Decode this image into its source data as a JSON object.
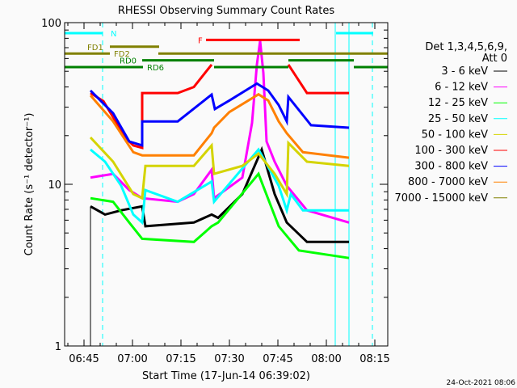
{
  "chart_data": {
    "type": "line",
    "title": "RHESSI Observing Summary Count Rates",
    "xlabel": "Start Time (17-Jun-14 06:39:02)",
    "ylabel": "Count Rate (s⁻¹ detector⁻¹)",
    "yscale": "log",
    "ylim": [
      1,
      100
    ],
    "xlim": [
      "06:39:00",
      "08:19:00"
    ],
    "x_ticks": [
      "06:45",
      "07:00",
      "07:15",
      "07:30",
      "07:45",
      "08:00",
      "08:15"
    ],
    "y_ticks": [
      "1",
      "10",
      "100"
    ],
    "grid": false,
    "legend_placement": "right",
    "legend_header": [
      "Det 1,3,4,5,6,9,",
      "Att 0"
    ],
    "footer": "24-Oct-2021 08:06",
    "series": [
      {
        "name": "3 - 6 keV",
        "color": "#000000",
        "points": [
          [
            "06:47:00",
            7.3
          ],
          [
            "06:51:30",
            6.5
          ],
          [
            "06:56:30",
            6.9
          ],
          [
            "07:03:00",
            7.3
          ],
          [
            "07:04:00",
            5.5
          ],
          [
            "07:19:00",
            5.8
          ],
          [
            "07:24:30",
            6.5
          ],
          [
            "07:26:30",
            6.2
          ],
          [
            "07:34:00",
            8.7
          ],
          [
            "07:40:00",
            16.4
          ],
          [
            "07:44:00",
            8.7
          ],
          [
            "07:47:45",
            5.8
          ],
          [
            "07:54:00",
            4.4
          ],
          [
            "08:07:00",
            4.4
          ]
        ]
      },
      {
        "name": "6 - 12 keV",
        "color": "#ff00ff",
        "points": [
          [
            "06:47:00",
            11
          ],
          [
            "06:54:00",
            11.6
          ],
          [
            "06:59:00",
            9.2
          ],
          [
            "07:03:00",
            8.2
          ],
          [
            "07:14:00",
            7.8
          ],
          [
            "07:19:00",
            8.7
          ],
          [
            "07:24:30",
            12.3
          ],
          [
            "07:25:15",
            8.2
          ],
          [
            "07:34:00",
            11
          ],
          [
            "07:37:00",
            24
          ],
          [
            "07:38:30",
            55
          ],
          [
            "07:39:30",
            77
          ],
          [
            "07:40:30",
            49
          ],
          [
            "07:41:30",
            18.4
          ],
          [
            "07:44:00",
            13.8
          ],
          [
            "07:47:45",
            9.8
          ],
          [
            "07:54:00",
            6.9
          ],
          [
            "08:07:00",
            5.8
          ]
        ]
      },
      {
        "name": "12 - 25 keV",
        "color": "#00ff00",
        "points": [
          [
            "06:47:00",
            8.2
          ],
          [
            "06:54:00",
            7.8
          ],
          [
            "06:59:00",
            5.8
          ],
          [
            "07:03:00",
            4.6
          ],
          [
            "07:19:00",
            4.4
          ],
          [
            "07:24:30",
            5.5
          ],
          [
            "07:26:30",
            5.8
          ],
          [
            "07:39:00",
            11.6
          ],
          [
            "07:45:15",
            5.5
          ],
          [
            "07:51:30",
            3.9
          ],
          [
            "08:07:00",
            3.5
          ]
        ]
      },
      {
        "name": "25 - 50 keV",
        "color": "#00ffff",
        "points": [
          [
            "06:47:00",
            16.4
          ],
          [
            "06:51:30",
            13.8
          ],
          [
            "06:56:30",
            9.8
          ],
          [
            "07:00:15",
            6.5
          ],
          [
            "07:03:00",
            5.8
          ],
          [
            "07:04:00",
            9.2
          ],
          [
            "07:14:00",
            7.8
          ],
          [
            "07:24:30",
            10.4
          ],
          [
            "07:25:15",
            7.8
          ],
          [
            "07:39:00",
            16.4
          ],
          [
            "07:45:15",
            9.8
          ],
          [
            "07:47:45",
            6.9
          ],
          [
            "07:49:00",
            8.7
          ],
          [
            "07:52:45",
            6.9
          ],
          [
            "08:07:00",
            6.9
          ]
        ]
      },
      {
        "name": "50 - 100 keV",
        "color": "#d4d400",
        "points": [
          [
            "06:47:00",
            19.5
          ],
          [
            "06:54:00",
            13.8
          ],
          [
            "07:00:15",
            8.7
          ],
          [
            "07:03:00",
            8.2
          ],
          [
            "07:04:00",
            13
          ],
          [
            "07:19:00",
            13
          ],
          [
            "07:24:30",
            17.4
          ],
          [
            "07:25:15",
            11.6
          ],
          [
            "07:34:00",
            13
          ],
          [
            "07:39:00",
            15.5
          ],
          [
            "07:44:00",
            11.6
          ],
          [
            "07:47:45",
            8.7
          ],
          [
            "07:48:15",
            18
          ],
          [
            "07:54:00",
            13.8
          ],
          [
            "08:07:00",
            13
          ]
        ]
      },
      {
        "name": "100 - 300 keV",
        "color": "#ff0000",
        "points": [
          [
            "06:47:00",
            36.7
          ],
          [
            "06:51:00",
            32.7
          ],
          [
            "06:54:00",
            26
          ],
          [
            "06:57:45",
            19.5
          ],
          [
            "07:00:15",
            17.4
          ],
          [
            "07:03:00",
            16.8
          ],
          [
            "07:03:00",
            36.7
          ],
          [
            "07:14:00",
            36.7
          ],
          [
            "07:19:00",
            40
          ],
          [
            "07:24:30",
            55
          ],
          [
            "07:25:00",
            null
          ],
          [
            "07:48:15",
            55
          ],
          [
            "07:54:00",
            36.7
          ],
          [
            "08:07:00",
            36.7
          ]
        ]
      },
      {
        "name": "300 - 800 keV",
        "color": "#0000ff",
        "points": [
          [
            "06:47:00",
            38
          ],
          [
            "06:54:00",
            27.5
          ],
          [
            "06:59:00",
            18.4
          ],
          [
            "07:03:00",
            17.4
          ],
          [
            "07:03:00",
            24.5
          ],
          [
            "07:14:00",
            24.5
          ],
          [
            "07:24:30",
            35.9
          ],
          [
            "07:25:30",
            29.2
          ],
          [
            "07:30:00",
            33
          ],
          [
            "07:38:30",
            42
          ],
          [
            "07:42:00",
            38
          ],
          [
            "07:45:15",
            30.9
          ],
          [
            "07:47:45",
            24.5
          ],
          [
            "07:48:15",
            34.7
          ],
          [
            "07:55:15",
            23.2
          ],
          [
            "08:07:00",
            22.4
          ]
        ]
      },
      {
        "name": "800 - 7000 keV",
        "color": "#ff8000",
        "points": [
          [
            "06:47:00",
            35.5
          ],
          [
            "06:54:00",
            24.5
          ],
          [
            "07:00:15",
            15.8
          ],
          [
            "07:03:00",
            15.1
          ],
          [
            "07:19:00",
            15.1
          ],
          [
            "07:24:30",
            20.7
          ],
          [
            "07:25:15",
            22.4
          ],
          [
            "07:30:00",
            28
          ],
          [
            "07:39:00",
            36
          ],
          [
            "07:42:00",
            33
          ],
          [
            "07:45:15",
            24.5
          ],
          [
            "07:47:45",
            20.7
          ],
          [
            "07:52:45",
            15.8
          ],
          [
            "08:07:00",
            14.6
          ]
        ]
      },
      {
        "name": "7000 - 15000 keV",
        "color": "#808000",
        "points": []
      }
    ],
    "flags": [
      {
        "label": "N",
        "color": "#00ffff",
        "level": 0,
        "ranges": [
          [
            "06:39:00",
            "06:50:45"
          ],
          [
            "08:03:00",
            "08:14:30"
          ]
        ]
      },
      {
        "label": "F",
        "color": "#ff0000",
        "level": 1,
        "ranges": [
          [
            "07:22:45",
            "07:51:45"
          ]
        ]
      },
      {
        "label": "FD1",
        "color": "#808000",
        "level": 2,
        "ranges": [
          [
            "06:53:00",
            "07:08:15"
          ]
        ]
      },
      {
        "label": "FD2",
        "color": "#808000",
        "level": 3,
        "ranges": [
          [
            "06:39:00",
            "06:53:00"
          ],
          [
            "07:08:00",
            "08:19:00"
          ]
        ]
      },
      {
        "label": "RD0",
        "color": "#008000",
        "level": 4,
        "ranges": [
          [
            "07:03:00",
            "07:25:15"
          ],
          [
            "07:48:15",
            "08:08:30"
          ]
        ]
      },
      {
        "label": "RD6",
        "color": "#008000",
        "level": 5,
        "ranges": [
          [
            "06:39:00",
            "07:03:15"
          ],
          [
            "07:25:15",
            "07:48:15"
          ],
          [
            "08:08:30",
            "08:19:00"
          ]
        ]
      }
    ],
    "markers": [
      {
        "time": "06:50:45",
        "color": "#00ffff",
        "style": "dashed"
      },
      {
        "time": "08:02:45",
        "color": "#00ffff",
        "style": "solid"
      },
      {
        "time": "08:07:00",
        "color": "#00ffff",
        "style": "solid"
      },
      {
        "time": "08:14:15",
        "color": "#00ffff",
        "style": "dashed"
      }
    ]
  }
}
